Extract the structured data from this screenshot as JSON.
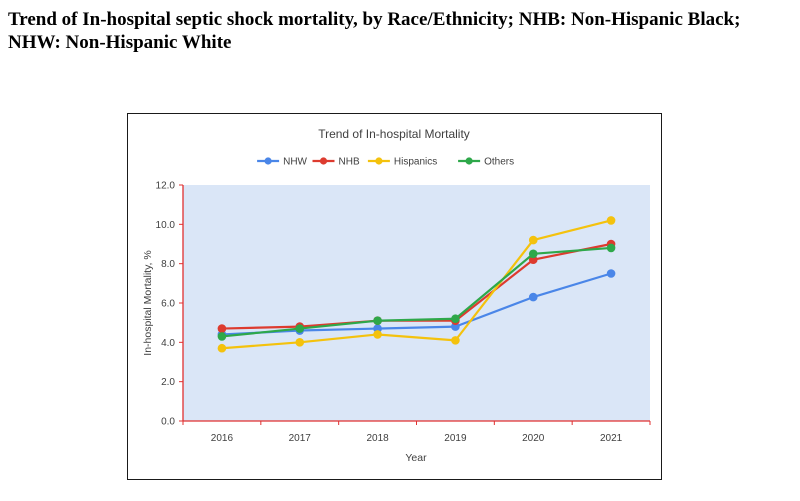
{
  "caption": "Trend of In-hospital septic shock mortality, by Race/Ethnicity; NHB: Non-Hispanic Black; NHW: Non-Hispanic White",
  "chart_data": {
    "type": "line",
    "title": "Trend of In-hospital Mortality",
    "xlabel": "Year",
    "ylabel": "In-hospital Mortality, %",
    "categories": [
      "2016",
      "2017",
      "2018",
      "2019",
      "2020",
      "2021"
    ],
    "ylim": [
      0,
      12
    ],
    "yticks": [
      "0.0",
      "2.0",
      "4.0",
      "6.0",
      "8.0",
      "10.0",
      "12.0"
    ],
    "grid": false,
    "legend_position": "top",
    "plot_background": "#dae6f7",
    "series": [
      {
        "name": "NHW",
        "color": "#4a86e8",
        "values": [
          4.4,
          4.6,
          4.7,
          4.8,
          6.3,
          7.5
        ]
      },
      {
        "name": "NHB",
        "color": "#dd3b2f",
        "values": [
          4.7,
          4.8,
          5.1,
          5.1,
          8.2,
          9.0
        ]
      },
      {
        "name": "Hispanics",
        "color": "#f4c20d",
        "values": [
          3.7,
          4.0,
          4.4,
          4.1,
          9.2,
          10.2
        ]
      },
      {
        "name": "Others",
        "color": "#2ea84a",
        "values": [
          4.3,
          4.7,
          5.1,
          5.2,
          8.5,
          8.8
        ]
      }
    ]
  }
}
